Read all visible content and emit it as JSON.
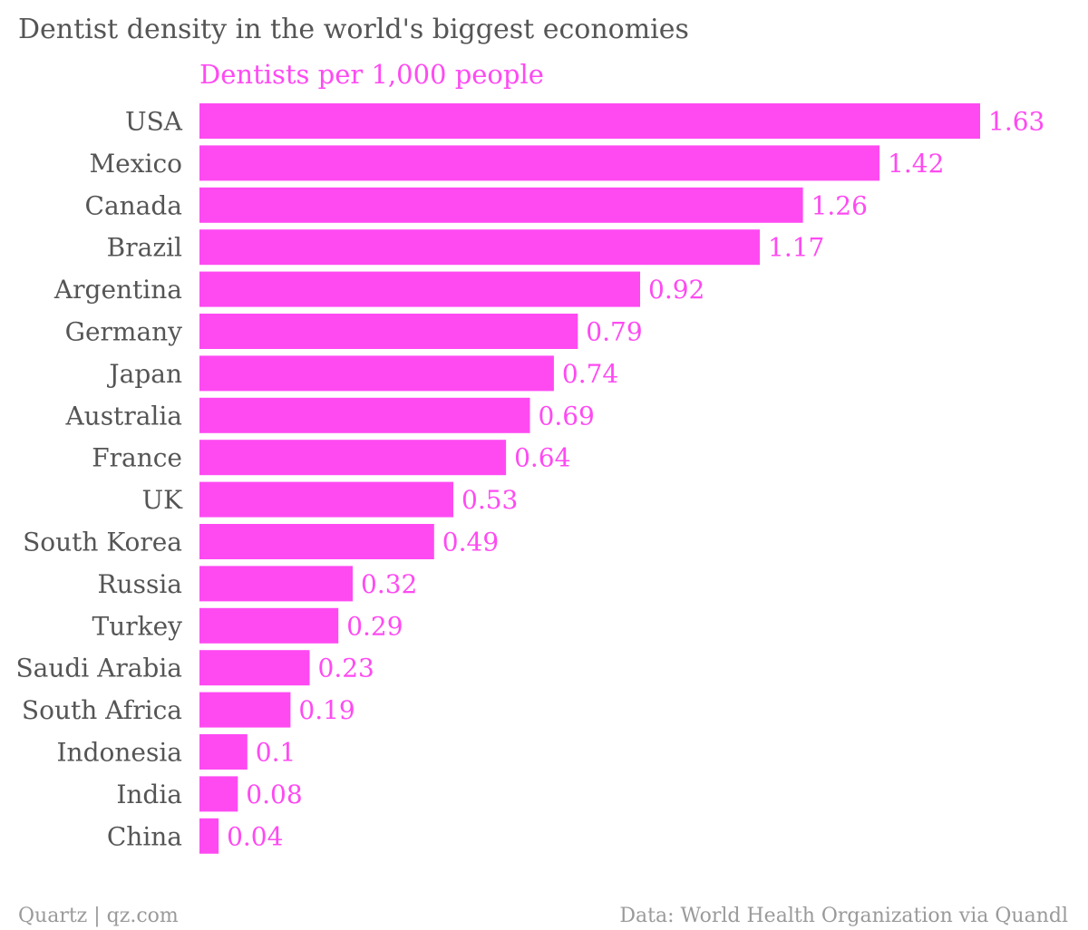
{
  "footer": {
    "left": "Quartz | qz.com",
    "right": "Data: World Health Organization via Quandl"
  },
  "colors": {
    "bar": "#ff4af2",
    "value_label": "#ff4af2",
    "subtitle": "#ff4af2",
    "text": "#555555",
    "footer": "#9a9a9a"
  },
  "chart_data": {
    "type": "bar",
    "orientation": "horizontal",
    "title": "Dentist density in the world's biggest economies",
    "subtitle": "Dentists per 1,000 people",
    "xlabel": "",
    "ylabel": "",
    "xlim": [
      0,
      1.63
    ],
    "grid": false,
    "legend": "none",
    "categories": [
      "USA",
      "Mexico",
      "Canada",
      "Brazil",
      "Argentina",
      "Germany",
      "Japan",
      "Australia",
      "France",
      "UK",
      "South Korea",
      "Russia",
      "Turkey",
      "Saudi Arabia",
      "South Africa",
      "Indonesia",
      "India",
      "China"
    ],
    "values": [
      1.63,
      1.42,
      1.26,
      1.17,
      0.92,
      0.79,
      0.74,
      0.69,
      0.64,
      0.53,
      0.49,
      0.32,
      0.29,
      0.23,
      0.19,
      0.1,
      0.08,
      0.04
    ],
    "value_labels": [
      "1.63",
      "1.42",
      "1.26",
      "1.17",
      "0.92",
      "0.79",
      "0.74",
      "0.69",
      "0.64",
      "0.53",
      "0.49",
      "0.32",
      "0.29",
      "0.23",
      "0.19",
      "0.1",
      "0.08",
      "0.04"
    ]
  }
}
